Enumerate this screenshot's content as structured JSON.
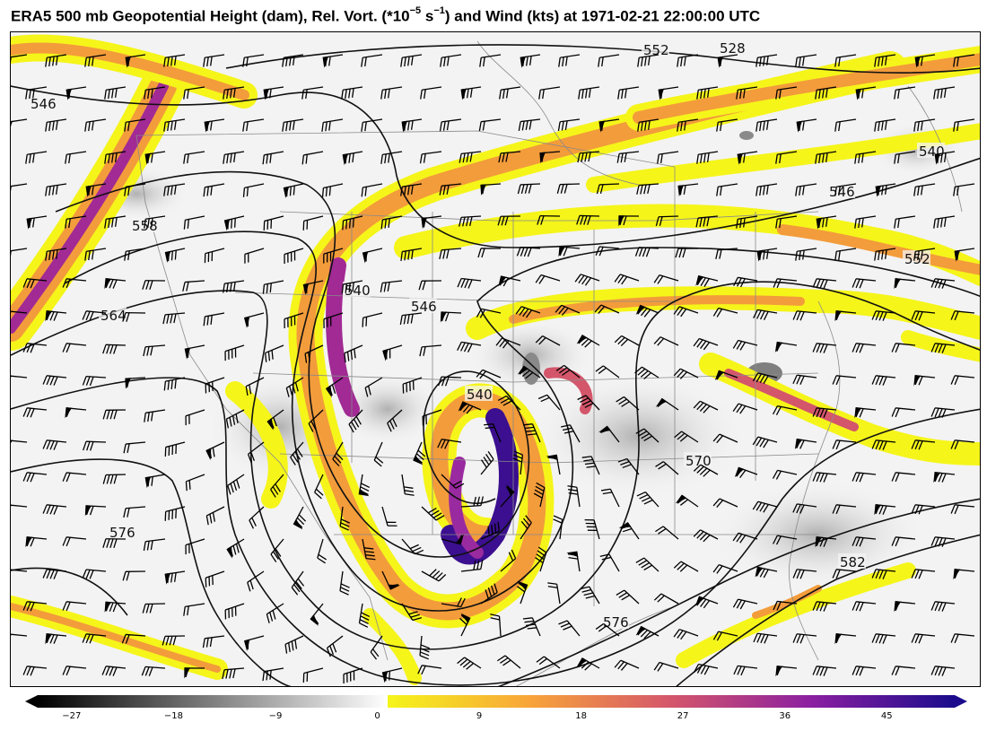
{
  "title": {
    "prefix": "ERA5 500 mb Geopotential Height (dam), Rel. Vort. (*10",
    "exp1": "−5",
    "mid": " s",
    "exp2": "−1",
    "suffix": ") and Wind (kts) at 1971-02-21 22:00:00 UTC"
  },
  "contour_labels": [
    "552",
    "528",
    "546",
    "540",
    "546",
    "552",
    "558",
    "564",
    "540",
    "546",
    "540",
    "570",
    "576",
    "582",
    "576"
  ],
  "colorbar": {
    "ticks": [
      "−27",
      "−18",
      "−9",
      "0",
      "9",
      "18",
      "27",
      "36",
      "45"
    ],
    "min": -30,
    "max": 51,
    "negative_colors": [
      "#000000",
      "#ffffff"
    ],
    "positive_colors": [
      "#f5f51a",
      "#f8a43a",
      "#d4566b",
      "#8a1fa1",
      "#1a0c8c"
    ]
  },
  "colors": {
    "land_border": "#8a8a8a",
    "contour": "#111111",
    "barb": "#000000"
  }
}
